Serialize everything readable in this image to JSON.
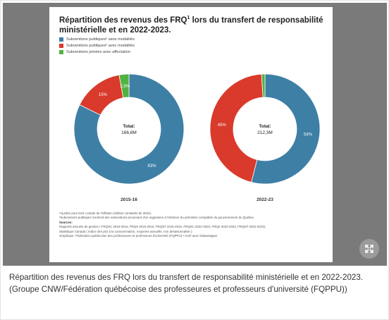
{
  "figure": {
    "title_main": "Répartition des revenus des FRQ",
    "title_sup": "1",
    "title_rest": " lors du transfert de responsabilité ministérielle et en 2022-2023.",
    "notes": [
      {
        "text": "¹Ajustée pour tenir compte de l'inflation (dollars constants de 2022).",
        "bold": false
      },
      {
        "text": "²Subventions publiques s'entend des subventions provenant d'un organisme à l'intérieur du périmètre comptable du gouvernement du Québec.",
        "bold": false
      },
      {
        "text": "Sources:",
        "bold": true
      },
      {
        "text": "Rapports annuels de gestion ( FRQSC 2015-2016, FRQS 2015-2016, FRQNT 2015-2016, FRQSC 2022-2023, FRQS 2022-2023, FRQNT 2022-2023),",
        "bold": false
      },
      {
        "text": "Statistique Canada ( Indice des prix à la consommation, moyenne annuelle, non désaisonnalisé ).",
        "bold": false
      },
      {
        "text": "Graphique: Fédération québécoise des professeures et professeurs d'université (FQPPU) • Créé avec Datawrapper",
        "bold": false
      }
    ]
  },
  "chart_data": {
    "type": "pie",
    "style": "donut",
    "legend": [
      {
        "label": "Subventions publiques² sans modalités",
        "color": "#3e7fa5"
      },
      {
        "label": "Subventions publiques² avec modalités",
        "color": "#d93a2b"
      },
      {
        "label": "Subventions privées avec affectation",
        "color": "#52b240"
      }
    ],
    "charts": [
      {
        "label": "2015-16",
        "total_label": "Total:",
        "total_value": "166,8M",
        "slices": [
          {
            "series": "Subventions publiques² sans modalités",
            "value": 83,
            "label": "83%"
          },
          {
            "series": "Subventions publiques² avec modalités",
            "value": 15,
            "label": "15%"
          },
          {
            "series": "Subventions privées avec affectation",
            "value": 2.9,
            "label": "2,9%"
          }
        ]
      },
      {
        "label": "2022-23",
        "total_label": "Total:",
        "total_value": "212,3M",
        "slices": [
          {
            "series": "Subventions publiques² sans modalités",
            "value": 54,
            "label": "54%"
          },
          {
            "series": "Subventions publiques² avec modalités",
            "value": 45,
            "label": "45%"
          },
          {
            "series": "Subventions privées avec affectation",
            "value": 1,
            "label": ""
          }
        ]
      }
    ]
  },
  "caption": "Répartition des revenus des FRQ lors du transfert de responsabilité ministérielle et en 2022-2023. (Groupe CNW/Fédération québécoise des professeures et professeurs d'université (FQPPU))",
  "icons": {
    "expand": "expand-arrows-icon"
  }
}
